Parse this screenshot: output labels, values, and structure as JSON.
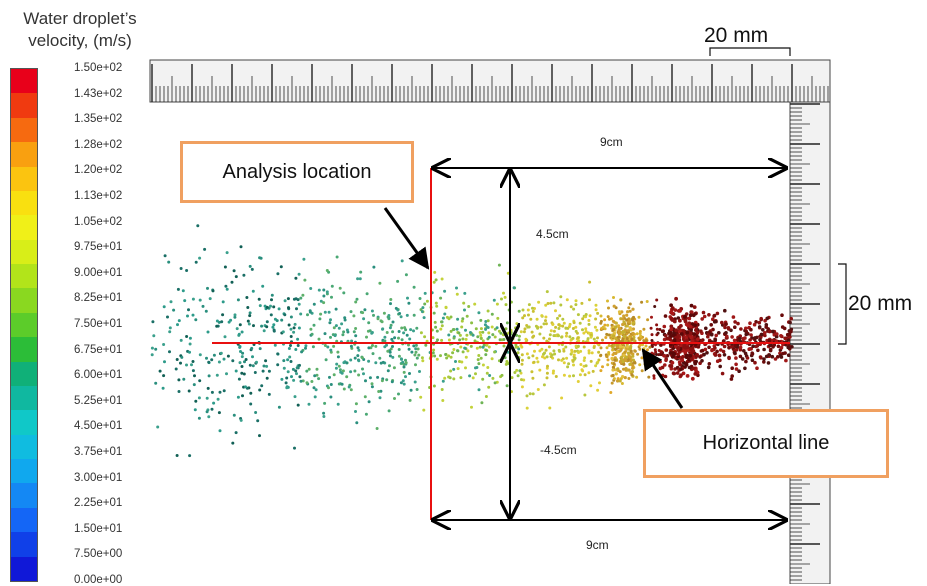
{
  "legend": {
    "title_line1": "Water droplet’s",
    "title_line2": "velocity, (m/s)",
    "ticks": [
      "1.50e+02",
      "1.43e+02",
      "1.35e+02",
      "1.28e+02",
      "1.20e+02",
      "1.13e+02",
      "1.05e+02",
      "9.75e+01",
      "9.00e+01",
      "8.25e+01",
      "7.50e+01",
      "6.75e+01",
      "6.00e+01",
      "5.25e+01",
      "4.50e+01",
      "3.75e+01",
      "3.00e+01",
      "2.25e+01",
      "1.50e+01",
      "7.50e+00",
      "0.00e+00"
    ],
    "colors": [
      "#e8001a",
      "#f03a10",
      "#f66a10",
      "#f9a010",
      "#fbc410",
      "#f9e010",
      "#f0f018",
      "#d8ee18",
      "#b2e41a",
      "#8ad820",
      "#5ccc2a",
      "#2cbd38",
      "#10b078",
      "#10b8a0",
      "#10c8c8",
      "#10bce0",
      "#10a8ee",
      "#1488f4",
      "#1466f6",
      "#1040e8",
      "#1018d8"
    ]
  },
  "labels": {
    "analysis_location": "Analysis location",
    "horizontal_line": "Horizontal line",
    "dim_top": "9cm",
    "dim_bottom": "9cm",
    "dim_up": "4.5cm",
    "dim_down": "-4.5cm",
    "scale_top": "20 mm",
    "scale_right": "20 mm"
  },
  "colors": {
    "analysis_line": "#e81010",
    "arrows": "#000000",
    "callout_border": "#f0a060"
  }
}
